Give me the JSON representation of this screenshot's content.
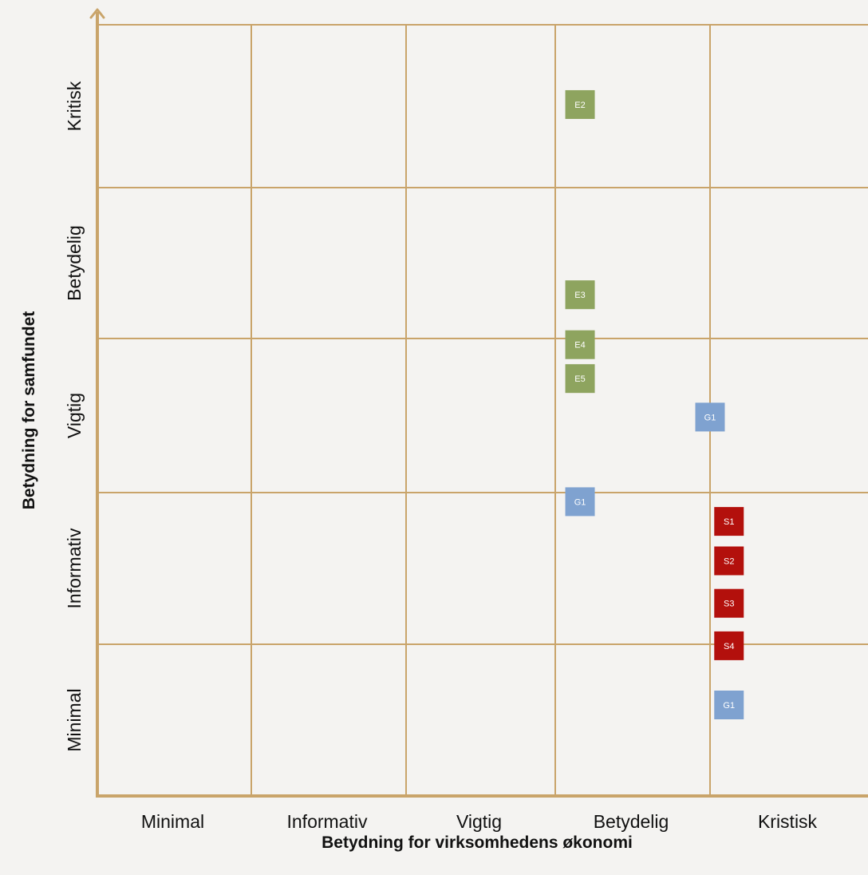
{
  "chart_data": {
    "type": "scatter",
    "title": "",
    "xlabel": "Betydning for virksomhedens økonomi",
    "ylabel": "Betydning for samfundet",
    "x_categories": [
      "Minimal",
      "Informativ",
      "Vigtig",
      "Betydelig",
      "Kristisk"
    ],
    "y_categories": [
      "Minimal",
      "Informativ",
      "Vigtig",
      "Betydelig",
      "Kritisk"
    ],
    "grid": true,
    "xlim": [
      0,
      5
    ],
    "ylim": [
      0,
      5
    ],
    "colors": {
      "grid": "#c9a46a",
      "E": "#8ea45f",
      "G": "#7fa2d0",
      "S": "#b3100c",
      "background": "#f4f3f1"
    },
    "series": [
      {
        "group": "E",
        "points": [
          {
            "label": "E2",
            "x": 3.16,
            "y": 4.51
          },
          {
            "label": "E3",
            "x": 3.16,
            "y": 3.29
          },
          {
            "label": "E4",
            "x": 3.16,
            "y": 2.96
          },
          {
            "label": "E5",
            "x": 3.16,
            "y": 2.74
          }
        ]
      },
      {
        "group": "G",
        "points": [
          {
            "label": "G1",
            "x": 4.0,
            "y": 2.49
          },
          {
            "label": "G1",
            "x": 3.16,
            "y": 1.94
          },
          {
            "label": "G1",
            "x": 4.12,
            "y": 0.6
          }
        ]
      },
      {
        "group": "S",
        "points": [
          {
            "label": "S1",
            "x": 4.12,
            "y": 1.81
          },
          {
            "label": "S2",
            "x": 4.12,
            "y": 1.55
          },
          {
            "label": "S3",
            "x": 4.12,
            "y": 1.27
          },
          {
            "label": "S4",
            "x": 4.12,
            "y": 0.99
          }
        ]
      }
    ]
  }
}
